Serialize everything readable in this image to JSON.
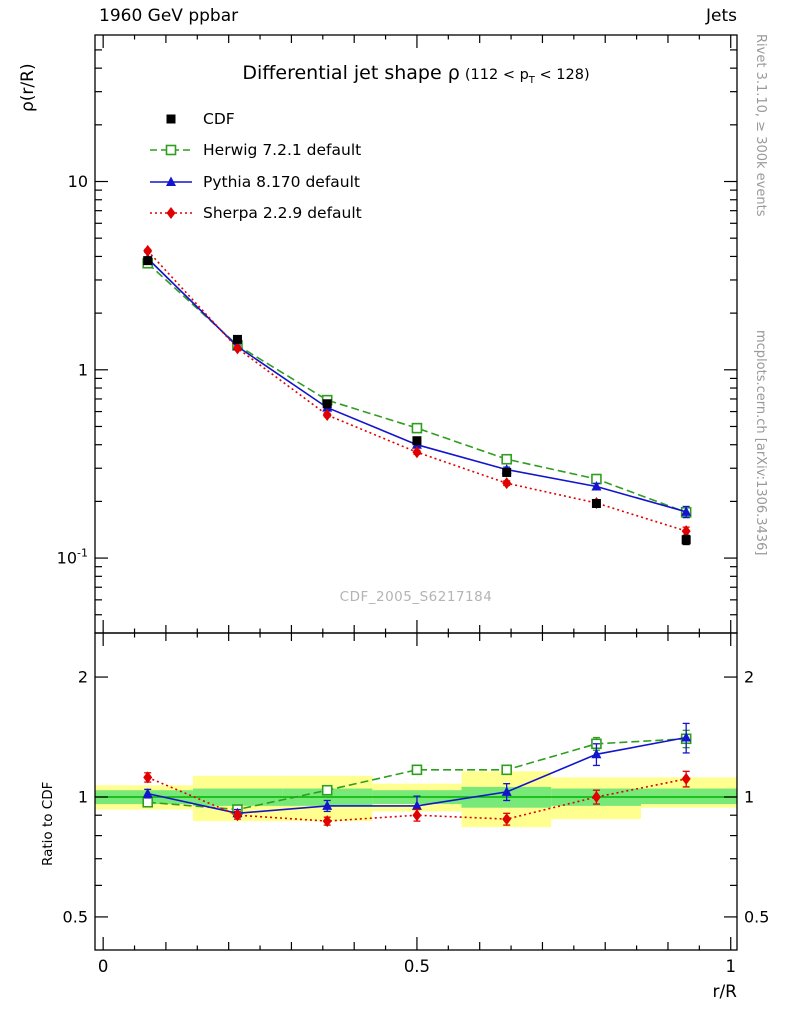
{
  "header": {
    "left": "1960 GeV ppbar",
    "right": "Jets"
  },
  "title": {
    "main": "Differential jet shape ρ",
    "paren_pre": "(112 < p",
    "paren_sub": "T",
    "paren_post": " < 128)"
  },
  "side_notes": {
    "top": "Rivet 3.1.10, ≥ 300k events",
    "bottom": "mcplots.cern.ch [arXiv:1306.3436]"
  },
  "watermark": "CDF_2005_S6217184",
  "axes": {
    "x_label": "r/R",
    "y_label_main": "ρ(r/R)",
    "y_label_ratio": "Ratio to CDF"
  },
  "chart_data": {
    "type": "line",
    "title": "Differential jet shape ρ (112 < pT < 128)",
    "xlabel": "r/R",
    "x_values": [
      0.071,
      0.214,
      0.357,
      0.5,
      0.643,
      0.786,
      0.929
    ],
    "xlim": [
      -0.013,
      1.01
    ],
    "x_ticks": [
      {
        "v": 0,
        "label": "0"
      },
      {
        "v": 0.5,
        "label": "0.5"
      },
      {
        "v": 1,
        "label": "1"
      }
    ],
    "bin_edges": [
      0,
      0.143,
      0.286,
      0.429,
      0.571,
      0.714,
      0.857,
      1
    ],
    "main_panel": {
      "ylog": true,
      "ylim": [
        0.04,
        60
      ],
      "y_ticks": [
        {
          "v": 10,
          "label": "10"
        },
        {
          "v": 1,
          "label": "1"
        },
        {
          "v": 0.1,
          "label": "10^{-1}"
        }
      ],
      "series": [
        {
          "name": "CDF",
          "color": "#000000",
          "marker": "square",
          "line": "none",
          "values": [
            3.8,
            1.45,
            0.66,
            0.42,
            0.285,
            0.195,
            0.125
          ],
          "yerr": [
            0.15,
            0.06,
            0.025,
            0.016,
            0.012,
            0.009,
            0.007
          ]
        },
        {
          "name": "Herwig 7.2.1 default",
          "color": "#2f9e1e",
          "marker": "square-open",
          "line": "dash",
          "values": [
            3.68,
            1.35,
            0.69,
            0.49,
            0.335,
            0.263,
            0.175
          ],
          "yerr": [
            0.06,
            0.02,
            0.012,
            0.009,
            0.007,
            0.006,
            0.006
          ]
        },
        {
          "name": "Pythia 8.170 default",
          "color": "#1414cc",
          "marker": "triangle",
          "line": "solid",
          "values": [
            3.9,
            1.33,
            0.63,
            0.4,
            0.295,
            0.24,
            0.176
          ],
          "yerr": [
            0.07,
            0.025,
            0.013,
            0.01,
            0.009,
            0.009,
            0.012
          ]
        },
        {
          "name": "Sherpa 2.2.9 default",
          "color": "#e00000",
          "marker": "diamond",
          "line": "dot",
          "values": [
            4.28,
            1.3,
            0.575,
            0.365,
            0.25,
            0.196,
            0.139
          ],
          "yerr": [
            0.08,
            0.025,
            0.012,
            0.009,
            0.007,
            0.006,
            0.007
          ]
        }
      ]
    },
    "ratio_panel": {
      "ylog": true,
      "ylim": [
        0.413,
        2.58
      ],
      "y_ticks": [
        {
          "v": 2,
          "label": "2"
        },
        {
          "v": 1,
          "label": "1"
        },
        {
          "v": 0.5,
          "label": "0.5"
        }
      ],
      "ref_value": 1,
      "ref_color": "#00b400",
      "bands": {
        "yellow_color": "#ffff8f",
        "green_color": "#78e878",
        "yellow": [
          [
            0.93,
            1.07
          ],
          [
            0.87,
            1.13
          ],
          [
            0.87,
            1.13
          ],
          [
            0.92,
            1.08
          ],
          [
            0.84,
            1.16
          ],
          [
            0.88,
            1.12
          ],
          [
            0.94,
            1.12
          ]
        ],
        "green": [
          [
            0.96,
            1.04
          ],
          [
            0.95,
            1.05
          ],
          [
            0.95,
            1.05
          ],
          [
            0.96,
            1.04
          ],
          [
            0.94,
            1.06
          ],
          [
            0.95,
            1.05
          ],
          [
            0.96,
            1.05
          ]
        ]
      },
      "series": [
        {
          "name": "Herwig 7.2.1 default",
          "color": "#2f9e1e",
          "marker": "square-open",
          "line": "dash",
          "values": [
            0.97,
            0.93,
            1.04,
            1.17,
            1.17,
            1.36,
            1.4
          ],
          "yerr": [
            0.02,
            0.015,
            0.02,
            0.025,
            0.03,
            0.05,
            0.07
          ]
        },
        {
          "name": "Pythia 8.170 default",
          "color": "#1414cc",
          "marker": "triangle",
          "line": "solid",
          "values": [
            1.02,
            0.91,
            0.95,
            0.95,
            1.03,
            1.28,
            1.41
          ],
          "yerr": [
            0.025,
            0.02,
            0.03,
            0.055,
            0.05,
            0.08,
            0.12
          ]
        },
        {
          "name": "Sherpa 2.2.9 default",
          "color": "#e00000",
          "marker": "diamond",
          "line": "dot",
          "values": [
            1.12,
            0.9,
            0.87,
            0.9,
            0.88,
            1.0,
            1.11
          ],
          "yerr": [
            0.03,
            0.02,
            0.02,
            0.03,
            0.03,
            0.04,
            0.05
          ]
        }
      ]
    }
  }
}
